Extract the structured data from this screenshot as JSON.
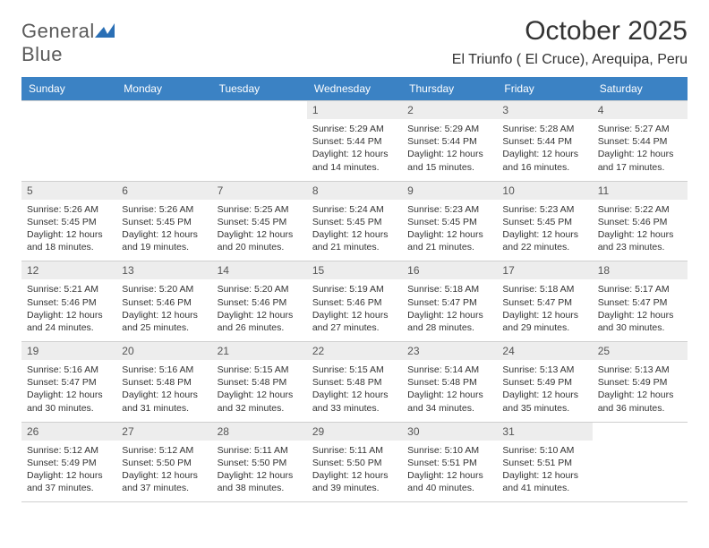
{
  "logo": {
    "word1": "General",
    "word2": "Blue"
  },
  "title": "October 2025",
  "location": "El Triunfo ( El Cruce), Arequipa, Peru",
  "colors": {
    "header_bg": "#3b82c4",
    "header_text": "#ffffff",
    "daynum_bg": "#ededed",
    "daynum_text": "#555555",
    "body_text": "#333333",
    "border": "#cfcfcf",
    "logo_text": "#5a5a5a",
    "logo_blue": "#2a6fb5"
  },
  "typography": {
    "title_fontsize": 30,
    "location_fontsize": 16,
    "dayheader_fontsize": 12,
    "cell_fontsize": 10.5
  },
  "day_names": [
    "Sunday",
    "Monday",
    "Tuesday",
    "Wednesday",
    "Thursday",
    "Friday",
    "Saturday"
  ],
  "weeks": [
    [
      {
        "blank": true
      },
      {
        "blank": true
      },
      {
        "blank": true
      },
      {
        "day": "1",
        "sunrise": "Sunrise: 5:29 AM",
        "sunset": "Sunset: 5:44 PM",
        "daylight": "Daylight: 12 hours and 14 minutes."
      },
      {
        "day": "2",
        "sunrise": "Sunrise: 5:29 AM",
        "sunset": "Sunset: 5:44 PM",
        "daylight": "Daylight: 12 hours and 15 minutes."
      },
      {
        "day": "3",
        "sunrise": "Sunrise: 5:28 AM",
        "sunset": "Sunset: 5:44 PM",
        "daylight": "Daylight: 12 hours and 16 minutes."
      },
      {
        "day": "4",
        "sunrise": "Sunrise: 5:27 AM",
        "sunset": "Sunset: 5:44 PM",
        "daylight": "Daylight: 12 hours and 17 minutes."
      }
    ],
    [
      {
        "day": "5",
        "sunrise": "Sunrise: 5:26 AM",
        "sunset": "Sunset: 5:45 PM",
        "daylight": "Daylight: 12 hours and 18 minutes."
      },
      {
        "day": "6",
        "sunrise": "Sunrise: 5:26 AM",
        "sunset": "Sunset: 5:45 PM",
        "daylight": "Daylight: 12 hours and 19 minutes."
      },
      {
        "day": "7",
        "sunrise": "Sunrise: 5:25 AM",
        "sunset": "Sunset: 5:45 PM",
        "daylight": "Daylight: 12 hours and 20 minutes."
      },
      {
        "day": "8",
        "sunrise": "Sunrise: 5:24 AM",
        "sunset": "Sunset: 5:45 PM",
        "daylight": "Daylight: 12 hours and 21 minutes."
      },
      {
        "day": "9",
        "sunrise": "Sunrise: 5:23 AM",
        "sunset": "Sunset: 5:45 PM",
        "daylight": "Daylight: 12 hours and 21 minutes."
      },
      {
        "day": "10",
        "sunrise": "Sunrise: 5:23 AM",
        "sunset": "Sunset: 5:45 PM",
        "daylight": "Daylight: 12 hours and 22 minutes."
      },
      {
        "day": "11",
        "sunrise": "Sunrise: 5:22 AM",
        "sunset": "Sunset: 5:46 PM",
        "daylight": "Daylight: 12 hours and 23 minutes."
      }
    ],
    [
      {
        "day": "12",
        "sunrise": "Sunrise: 5:21 AM",
        "sunset": "Sunset: 5:46 PM",
        "daylight": "Daylight: 12 hours and 24 minutes."
      },
      {
        "day": "13",
        "sunrise": "Sunrise: 5:20 AM",
        "sunset": "Sunset: 5:46 PM",
        "daylight": "Daylight: 12 hours and 25 minutes."
      },
      {
        "day": "14",
        "sunrise": "Sunrise: 5:20 AM",
        "sunset": "Sunset: 5:46 PM",
        "daylight": "Daylight: 12 hours and 26 minutes."
      },
      {
        "day": "15",
        "sunrise": "Sunrise: 5:19 AM",
        "sunset": "Sunset: 5:46 PM",
        "daylight": "Daylight: 12 hours and 27 minutes."
      },
      {
        "day": "16",
        "sunrise": "Sunrise: 5:18 AM",
        "sunset": "Sunset: 5:47 PM",
        "daylight": "Daylight: 12 hours and 28 minutes."
      },
      {
        "day": "17",
        "sunrise": "Sunrise: 5:18 AM",
        "sunset": "Sunset: 5:47 PM",
        "daylight": "Daylight: 12 hours and 29 minutes."
      },
      {
        "day": "18",
        "sunrise": "Sunrise: 5:17 AM",
        "sunset": "Sunset: 5:47 PM",
        "daylight": "Daylight: 12 hours and 30 minutes."
      }
    ],
    [
      {
        "day": "19",
        "sunrise": "Sunrise: 5:16 AM",
        "sunset": "Sunset: 5:47 PM",
        "daylight": "Daylight: 12 hours and 30 minutes."
      },
      {
        "day": "20",
        "sunrise": "Sunrise: 5:16 AM",
        "sunset": "Sunset: 5:48 PM",
        "daylight": "Daylight: 12 hours and 31 minutes."
      },
      {
        "day": "21",
        "sunrise": "Sunrise: 5:15 AM",
        "sunset": "Sunset: 5:48 PM",
        "daylight": "Daylight: 12 hours and 32 minutes."
      },
      {
        "day": "22",
        "sunrise": "Sunrise: 5:15 AM",
        "sunset": "Sunset: 5:48 PM",
        "daylight": "Daylight: 12 hours and 33 minutes."
      },
      {
        "day": "23",
        "sunrise": "Sunrise: 5:14 AM",
        "sunset": "Sunset: 5:48 PM",
        "daylight": "Daylight: 12 hours and 34 minutes."
      },
      {
        "day": "24",
        "sunrise": "Sunrise: 5:13 AM",
        "sunset": "Sunset: 5:49 PM",
        "daylight": "Daylight: 12 hours and 35 minutes."
      },
      {
        "day": "25",
        "sunrise": "Sunrise: 5:13 AM",
        "sunset": "Sunset: 5:49 PM",
        "daylight": "Daylight: 12 hours and 36 minutes."
      }
    ],
    [
      {
        "day": "26",
        "sunrise": "Sunrise: 5:12 AM",
        "sunset": "Sunset: 5:49 PM",
        "daylight": "Daylight: 12 hours and 37 minutes."
      },
      {
        "day": "27",
        "sunrise": "Sunrise: 5:12 AM",
        "sunset": "Sunset: 5:50 PM",
        "daylight": "Daylight: 12 hours and 37 minutes."
      },
      {
        "day": "28",
        "sunrise": "Sunrise: 5:11 AM",
        "sunset": "Sunset: 5:50 PM",
        "daylight": "Daylight: 12 hours and 38 minutes."
      },
      {
        "day": "29",
        "sunrise": "Sunrise: 5:11 AM",
        "sunset": "Sunset: 5:50 PM",
        "daylight": "Daylight: 12 hours and 39 minutes."
      },
      {
        "day": "30",
        "sunrise": "Sunrise: 5:10 AM",
        "sunset": "Sunset: 5:51 PM",
        "daylight": "Daylight: 12 hours and 40 minutes."
      },
      {
        "day": "31",
        "sunrise": "Sunrise: 5:10 AM",
        "sunset": "Sunset: 5:51 PM",
        "daylight": "Daylight: 12 hours and 41 minutes."
      },
      {
        "blank": true
      }
    ]
  ]
}
